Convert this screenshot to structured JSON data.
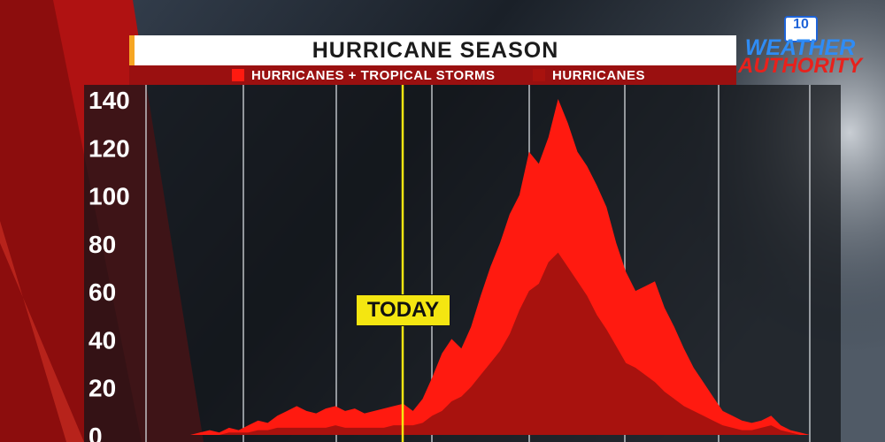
{
  "chart_data": {
    "type": "area",
    "title": "HURRICANE SEASON",
    "xlabel": "",
    "ylabel": "",
    "ylim": [
      0,
      140
    ],
    "yticks": [
      "0",
      "20",
      "40",
      "60",
      "80",
      "100",
      "120",
      "140"
    ],
    "grid": true,
    "legend_placement": "top",
    "series": [
      {
        "name": "HURRICANES + TROPICAL STORMS",
        "color": "#ff1a10",
        "values": [
          0,
          1,
          2,
          1,
          3,
          2,
          4,
          6,
          5,
          8,
          10,
          12,
          10,
          9,
          11,
          12,
          10,
          11,
          9,
          10,
          11,
          12,
          13,
          10,
          15,
          24,
          34,
          40,
          36,
          45,
          58,
          70,
          80,
          92,
          100,
          118,
          113,
          124,
          140,
          130,
          118,
          112,
          104,
          95,
          80,
          68,
          60,
          62,
          64,
          53,
          45,
          36,
          28,
          22,
          16,
          10,
          8,
          6,
          5,
          6,
          8,
          4,
          2,
          1,
          0
        ]
      },
      {
        "name": "HURRICANES",
        "color": "#a8120e",
        "values": [
          0,
          0,
          0,
          0,
          1,
          1,
          1,
          2,
          2,
          3,
          3,
          3,
          3,
          3,
          3,
          4,
          3,
          3,
          3,
          3,
          3,
          4,
          4,
          4,
          5,
          8,
          10,
          14,
          16,
          20,
          25,
          30,
          35,
          42,
          52,
          60,
          63,
          72,
          76,
          70,
          64,
          58,
          50,
          44,
          37,
          30,
          28,
          25,
          22,
          18,
          15,
          12,
          10,
          8,
          6,
          4,
          3,
          2,
          2,
          3,
          4,
          2,
          1,
          0,
          0
        ]
      }
    ]
  },
  "annotations": {
    "today_label": "TODAY"
  },
  "logo": {
    "badge_number": "10",
    "line1": "WEATHER",
    "line2": "AUTHORITY"
  },
  "colors": {
    "today_line": "#f4e611",
    "legend_bar": "#9a1010",
    "title_accent": "#f6a623"
  }
}
